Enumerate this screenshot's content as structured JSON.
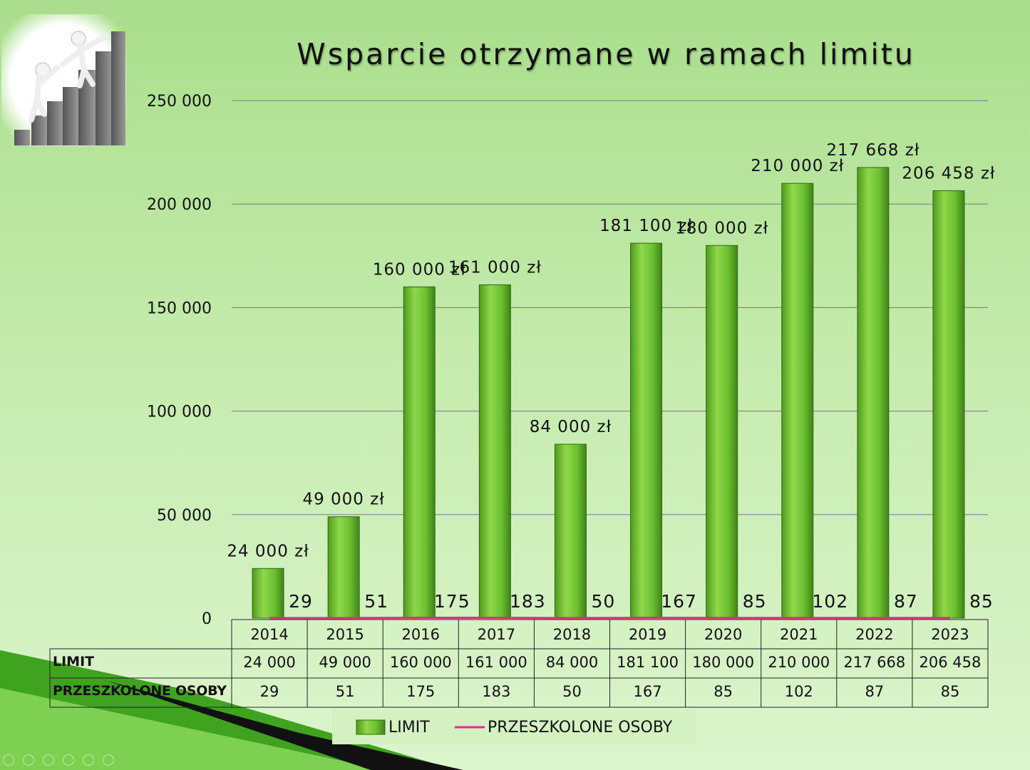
{
  "chart_data": {
    "type": "bar",
    "title": "Wsparcie otrzymane w ramach limitu",
    "categories": [
      "2014",
      "2015",
      "2016",
      "2017",
      "2018",
      "2019",
      "2020",
      "2021",
      "2022",
      "2023"
    ],
    "series": [
      {
        "name": "LIMIT",
        "type": "bar",
        "color": "#6ab82e",
        "values": [
          24000,
          49000,
          160000,
          161000,
          84000,
          181100,
          180000,
          210000,
          217668,
          206458
        ],
        "data_labels": [
          "24 000 zł",
          "49 000 zł",
          "160 000 zł",
          "161 000 zł",
          "84 000 zł",
          "181 100 zł",
          "180 000 zł",
          "210 000 zł",
          "217 668 zł",
          "206 458 zł"
        ]
      },
      {
        "name": "PRZESZKOLONE OSOBY",
        "type": "line",
        "color": "#d63384",
        "values": [
          29,
          51,
          175,
          183,
          50,
          167,
          85,
          102,
          87,
          85
        ]
      }
    ],
    "yticks": [
      "0",
      "50 000",
      "100 000",
      "150 000",
      "200 000",
      "250 000"
    ],
    "ylim": [
      0,
      250000
    ],
    "grid": true,
    "legend_position": "bottom",
    "data_table": {
      "rows": [
        {
          "label": "LIMIT",
          "cells": [
            "24 000",
            "49 000",
            "160 000",
            "161 000",
            "84 000",
            "181 100",
            "180 000",
            "210 000",
            "217 668",
            "206 458"
          ]
        },
        {
          "label": "PRZESZKOLONE OSOBY",
          "cells": [
            "29",
            "51",
            "175",
            "183",
            "50",
            "167",
            "85",
            "102",
            "87",
            "85"
          ]
        }
      ]
    }
  }
}
